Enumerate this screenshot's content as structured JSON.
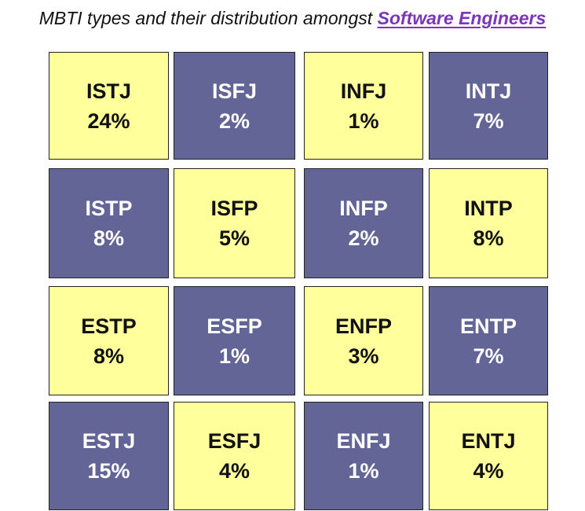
{
  "title": {
    "prefix": "MBTI types and their distribution amongst ",
    "link_text": "Software Engineers"
  },
  "colors": {
    "yellow": "#ffff9b",
    "purple": "#636597",
    "link": "#7a35b8"
  },
  "chart_data": {
    "type": "table",
    "title": "MBTI types and their distribution amongst Software Engineers",
    "unit": "%",
    "rows": [
      [
        {
          "type": "ISTJ",
          "value": 24,
          "label": "24%",
          "color": "yellow"
        },
        {
          "type": "ISFJ",
          "value": 2,
          "label": "2%",
          "color": "purple"
        },
        {
          "type": "INFJ",
          "value": 1,
          "label": "1%",
          "color": "yellow"
        },
        {
          "type": "INTJ",
          "value": 7,
          "label": "7%",
          "color": "purple"
        }
      ],
      [
        {
          "type": "ISTP",
          "value": 8,
          "label": "8%",
          "color": "purple"
        },
        {
          "type": "ISFP",
          "value": 5,
          "label": "5%",
          "color": "yellow"
        },
        {
          "type": "INFP",
          "value": 2,
          "label": "2%",
          "color": "purple"
        },
        {
          "type": "INTP",
          "value": 8,
          "label": "8%",
          "color": "yellow"
        }
      ],
      [
        {
          "type": "ESTP",
          "value": 8,
          "label": "8%",
          "color": "yellow"
        },
        {
          "type": "ESFP",
          "value": 1,
          "label": "1%",
          "color": "purple"
        },
        {
          "type": "ENFP",
          "value": 3,
          "label": "3%",
          "color": "yellow"
        },
        {
          "type": "ENTP",
          "value": 7,
          "label": "7%",
          "color": "purple"
        }
      ],
      [
        {
          "type": "ESTJ",
          "value": 15,
          "label": "15%",
          "color": "purple"
        },
        {
          "type": "ESFJ",
          "value": 4,
          "label": "4%",
          "color": "yellow"
        },
        {
          "type": "ENFJ",
          "value": 1,
          "label": "1%",
          "color": "purple"
        },
        {
          "type": "ENTJ",
          "value": 4,
          "label": "4%",
          "color": "yellow"
        }
      ]
    ]
  }
}
